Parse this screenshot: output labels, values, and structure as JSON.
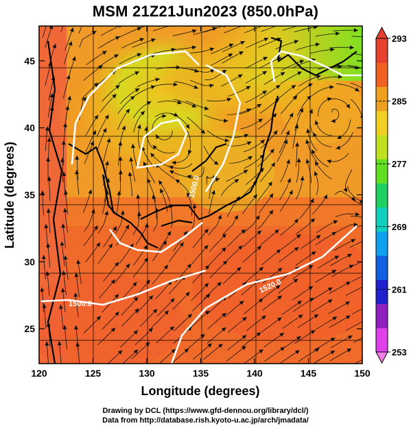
{
  "title": "MSM 21Z21Jun2023 (850.0hPa)",
  "axes": {
    "xlabel": "Longitude (degrees)",
    "ylabel": "Latitude  (degrees)",
    "x_ticks": [
      "120",
      "125",
      "130",
      "135",
      "140",
      "145",
      "150"
    ],
    "y_ticks": [
      "25",
      "30",
      "35",
      "40",
      "45"
    ],
    "x_range": [
      120,
      150
    ],
    "y_range": [
      22.4,
      47.6
    ]
  },
  "colorbar": {
    "ticks": [
      "293",
      "285",
      "277",
      "269",
      "261",
      "253"
    ],
    "range": [
      253,
      293
    ],
    "colors": [
      "#e040e8",
      "#9020c0",
      "#2020d0",
      "#1060e0",
      "#10a0f0",
      "#10d0c0",
      "#20d060",
      "#60e020",
      "#c0e020",
      "#f0d020",
      "#f0a020",
      "#f06020",
      "#e84030"
    ]
  },
  "contours": {
    "labels": [
      "1500.0",
      "1500.0",
      "1520.0"
    ]
  },
  "credits": {
    "line1": "Drawing by DCL (https://www.gfd-dennou.org/library/dcl/)",
    "line2": "Data from http://database.rish.kyoto-u.ac.jp/arch/jmadata/"
  }
}
